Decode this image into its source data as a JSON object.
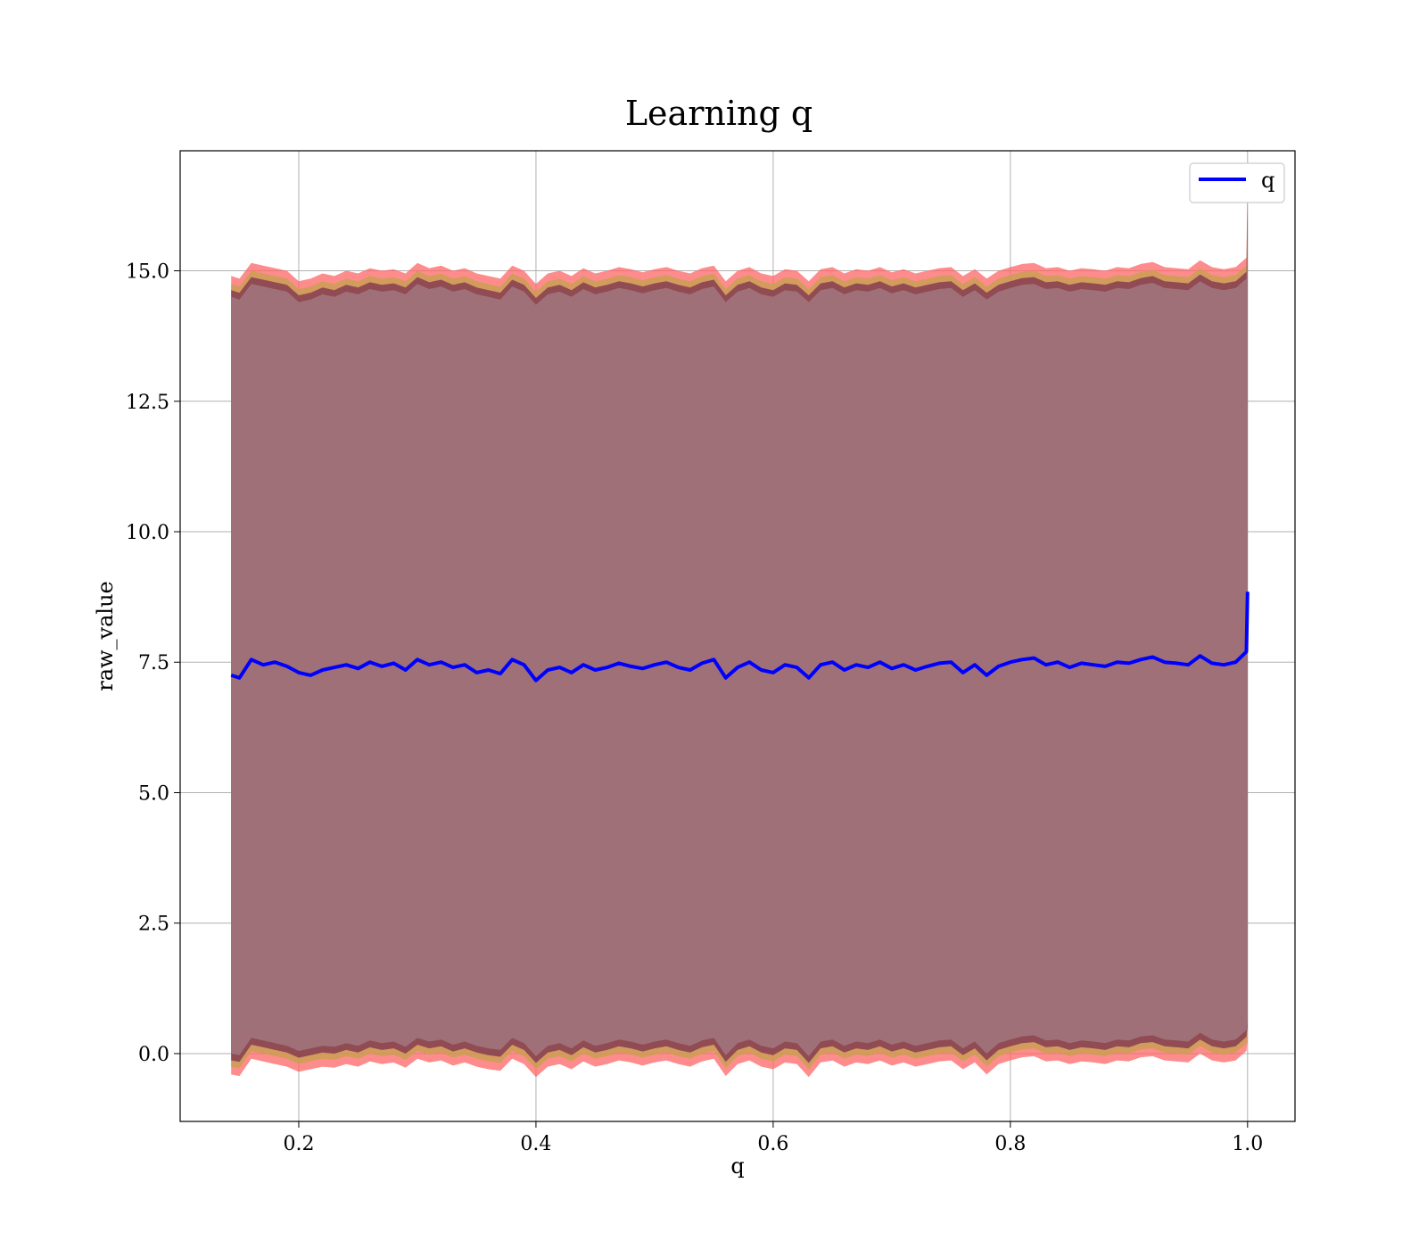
{
  "chart_data": {
    "type": "line",
    "title": "Learning q",
    "xlabel": "q",
    "ylabel": "raw_value",
    "xlim": [
      0.1,
      1.04
    ],
    "ylim": [
      -1.3,
      17.3
    ],
    "grid": true,
    "legend": {
      "position": "top-right",
      "entries": [
        "q"
      ]
    },
    "x_ticks": [
      0.2,
      0.4,
      0.6,
      0.8,
      1.0
    ],
    "x_tick_labels": [
      "0.2",
      "0.4",
      "0.6",
      "0.8",
      "1.0"
    ],
    "y_ticks": [
      0.0,
      2.5,
      5.0,
      7.5,
      10.0,
      12.5,
      15.0
    ],
    "y_tick_labels": [
      "0.0",
      "2.5",
      "5.0",
      "7.5",
      "10.0",
      "12.5",
      "15.0"
    ],
    "colors": {
      "line": "#0000ff",
      "band_outer": "#ff6666",
      "band_mid": "#c8a050",
      "band_inner": "#7a3050",
      "fill": "#a07078"
    },
    "series": [
      {
        "name": "q",
        "x": [
          0.143,
          0.15,
          0.16,
          0.17,
          0.18,
          0.19,
          0.2,
          0.21,
          0.22,
          0.23,
          0.24,
          0.25,
          0.26,
          0.27,
          0.28,
          0.29,
          0.3,
          0.31,
          0.32,
          0.33,
          0.34,
          0.35,
          0.36,
          0.37,
          0.38,
          0.39,
          0.4,
          0.41,
          0.42,
          0.43,
          0.44,
          0.45,
          0.46,
          0.47,
          0.48,
          0.49,
          0.5,
          0.51,
          0.52,
          0.53,
          0.54,
          0.55,
          0.56,
          0.57,
          0.58,
          0.59,
          0.6,
          0.61,
          0.62,
          0.63,
          0.64,
          0.65,
          0.66,
          0.67,
          0.68,
          0.69,
          0.7,
          0.71,
          0.72,
          0.73,
          0.74,
          0.75,
          0.76,
          0.77,
          0.78,
          0.79,
          0.8,
          0.81,
          0.82,
          0.83,
          0.84,
          0.85,
          0.86,
          0.87,
          0.88,
          0.89,
          0.9,
          0.91,
          0.92,
          0.93,
          0.94,
          0.95,
          0.96,
          0.97,
          0.98,
          0.99,
          0.999,
          1.0
        ],
        "y": [
          7.25,
          7.2,
          7.55,
          7.45,
          7.5,
          7.42,
          7.3,
          7.25,
          7.35,
          7.4,
          7.45,
          7.38,
          7.5,
          7.42,
          7.48,
          7.35,
          7.55,
          7.45,
          7.5,
          7.4,
          7.45,
          7.3,
          7.35,
          7.28,
          7.55,
          7.45,
          7.15,
          7.35,
          7.4,
          7.3,
          7.45,
          7.35,
          7.4,
          7.48,
          7.42,
          7.38,
          7.45,
          7.5,
          7.4,
          7.35,
          7.48,
          7.55,
          7.2,
          7.4,
          7.5,
          7.35,
          7.3,
          7.45,
          7.4,
          7.2,
          7.45,
          7.5,
          7.35,
          7.45,
          7.4,
          7.5,
          7.38,
          7.45,
          7.35,
          7.42,
          7.48,
          7.5,
          7.3,
          7.45,
          7.25,
          7.42,
          7.5,
          7.55,
          7.58,
          7.45,
          7.5,
          7.4,
          7.48,
          7.45,
          7.42,
          7.5,
          7.48,
          7.55,
          7.6,
          7.5,
          7.48,
          7.45,
          7.62,
          7.48,
          7.45,
          7.5,
          7.7,
          8.85
        ]
      }
    ],
    "band": {
      "upper": [
        14.75,
        14.7,
        15.0,
        14.95,
        14.9,
        14.85,
        14.65,
        14.7,
        14.8,
        14.75,
        14.85,
        14.8,
        14.9,
        14.85,
        14.88,
        14.8,
        15.0,
        14.9,
        14.95,
        14.85,
        14.9,
        14.8,
        14.75,
        14.7,
        14.95,
        14.85,
        14.6,
        14.8,
        14.85,
        14.75,
        14.9,
        14.8,
        14.85,
        14.92,
        14.88,
        14.82,
        14.88,
        14.92,
        14.85,
        14.8,
        14.9,
        14.95,
        14.65,
        14.85,
        14.92,
        14.8,
        14.75,
        14.88,
        14.85,
        14.65,
        14.88,
        14.92,
        14.8,
        14.88,
        14.85,
        14.92,
        14.82,
        14.88,
        14.8,
        14.85,
        14.9,
        14.92,
        14.75,
        14.88,
        14.7,
        14.85,
        14.92,
        14.98,
        15.0,
        14.9,
        14.92,
        14.85,
        14.9,
        14.88,
        14.85,
        14.92,
        14.9,
        14.98,
        15.02,
        14.92,
        14.9,
        14.88,
        15.05,
        14.92,
        14.88,
        14.92,
        15.1,
        16.5
      ],
      "lower": [
        -0.25,
        -0.28,
        0.05,
        0.0,
        -0.05,
        -0.1,
        -0.2,
        -0.15,
        -0.1,
        -0.12,
        -0.05,
        -0.1,
        0.0,
        -0.05,
        -0.02,
        -0.12,
        0.05,
        -0.02,
        0.02,
        -0.08,
        -0.02,
        -0.1,
        -0.15,
        -0.18,
        0.05,
        -0.05,
        -0.3,
        -0.1,
        -0.05,
        -0.15,
        0.0,
        -0.1,
        -0.05,
        0.02,
        -0.02,
        -0.08,
        -0.02,
        0.02,
        -0.05,
        -0.1,
        0.0,
        0.05,
        -0.28,
        -0.05,
        0.02,
        -0.1,
        -0.15,
        -0.02,
        -0.05,
        -0.3,
        -0.02,
        0.02,
        -0.1,
        -0.02,
        -0.05,
        0.02,
        -0.08,
        -0.02,
        -0.1,
        -0.05,
        0.0,
        0.02,
        -0.15,
        -0.02,
        -0.25,
        -0.05,
        0.02,
        0.08,
        0.1,
        0.0,
        0.02,
        -0.05,
        0.0,
        -0.02,
        -0.05,
        0.02,
        0.0,
        0.08,
        0.1,
        0.02,
        0.0,
        -0.02,
        0.15,
        0.02,
        -0.02,
        0.02,
        0.2,
        0.4
      ]
    }
  }
}
